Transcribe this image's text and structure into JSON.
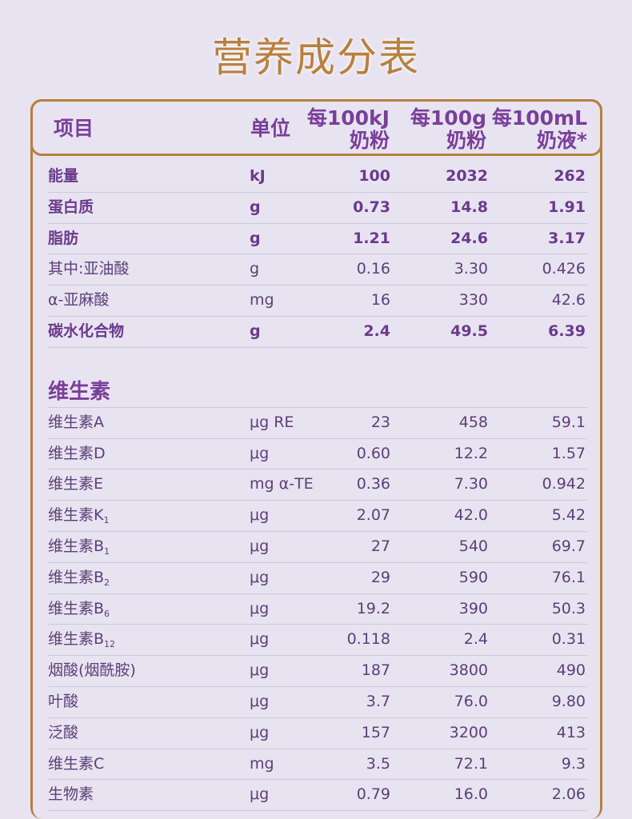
{
  "title": "营养成分表",
  "header": {
    "col_item": "项目",
    "col_unit": "单位",
    "col_1_line1": "每100kJ",
    "col_1_line2": "奶粉",
    "col_2_line1": "每100g",
    "col_2_line2": "奶粉",
    "col_3_line1": "每100mL",
    "col_3_line2": "奶液*"
  },
  "macros": [
    {
      "name": "能量",
      "unit": "kJ",
      "per_100kj": "100",
      "per_100g": "2032",
      "per_100ml": "262",
      "bold": true
    },
    {
      "name": "蛋白质",
      "unit": "g",
      "per_100kj": "0.73",
      "per_100g": "14.8",
      "per_100ml": "1.91",
      "bold": true
    },
    {
      "name": "脂肪",
      "unit": "g",
      "per_100kj": "1.21",
      "per_100g": "24.6",
      "per_100ml": "3.17",
      "bold": true
    },
    {
      "name": "其中:亚油酸",
      "unit": "g",
      "per_100kj": "0.16",
      "per_100g": "3.30",
      "per_100ml": "0.426",
      "bold": false
    },
    {
      "name": " α-亚麻酸",
      "unit": "mg",
      "per_100kj": "16",
      "per_100g": "330",
      "per_100ml": "42.6",
      "bold": false
    },
    {
      "name": "碳水化合物",
      "unit": "g",
      "per_100kj": "2.4",
      "per_100g": "49.5",
      "per_100ml": "6.39",
      "bold": true
    }
  ],
  "vitamins_section": "维生素",
  "vitamins": [
    {
      "name": "维生素A",
      "sub": "",
      "unit": "μg RE",
      "per_100kj": "23",
      "per_100g": "458",
      "per_100ml": "59.1"
    },
    {
      "name": "维生素D",
      "sub": "",
      "unit": "μg",
      "per_100kj": "0.60",
      "per_100g": "12.2",
      "per_100ml": "1.57"
    },
    {
      "name": "维生素E",
      "sub": "",
      "unit": "mg α-TE",
      "per_100kj": "0.36",
      "per_100g": "7.30",
      "per_100ml": "0.942"
    },
    {
      "name": "维生素K",
      "sub": "1",
      "unit": "μg",
      "per_100kj": "2.07",
      "per_100g": "42.0",
      "per_100ml": "5.42"
    },
    {
      "name": "维生素B",
      "sub": "1",
      "unit": "μg",
      "per_100kj": "27",
      "per_100g": "540",
      "per_100ml": "69.7"
    },
    {
      "name": "维生素B",
      "sub": "2",
      "unit": "μg",
      "per_100kj": "29",
      "per_100g": "590",
      "per_100ml": "76.1"
    },
    {
      "name": "维生素B",
      "sub": "6",
      "unit": "μg",
      "per_100kj": "19.2",
      "per_100g": "390",
      "per_100ml": "50.3"
    },
    {
      "name": "维生素B",
      "sub": "12",
      "unit": "μg",
      "per_100kj": "0.118",
      "per_100g": "2.4",
      "per_100ml": "0.31"
    },
    {
      "name": "烟酸(烟酰胺)",
      "sub": "",
      "unit": "μg",
      "per_100kj": "187",
      "per_100g": "3800",
      "per_100ml": "490"
    },
    {
      "name": "叶酸",
      "sub": "",
      "unit": "μg",
      "per_100kj": "3.7",
      "per_100g": "76.0",
      "per_100ml": "9.80"
    },
    {
      "name": "泛酸",
      "sub": "",
      "unit": "μg",
      "per_100kj": "157",
      "per_100g": "3200",
      "per_100ml": "413"
    },
    {
      "name": "维生素C",
      "sub": "",
      "unit": "mg",
      "per_100kj": "3.5",
      "per_100g": "72.1",
      "per_100ml": "9.3"
    },
    {
      "name": "生物素",
      "sub": "",
      "unit": "μg",
      "per_100kj": "0.79",
      "per_100g": "16.0",
      "per_100ml": "2.06"
    }
  ],
  "colors": {
    "background": "#e8e3f0",
    "gold_accent": "#b8803e",
    "purple_text": "#7a3f9a"
  }
}
